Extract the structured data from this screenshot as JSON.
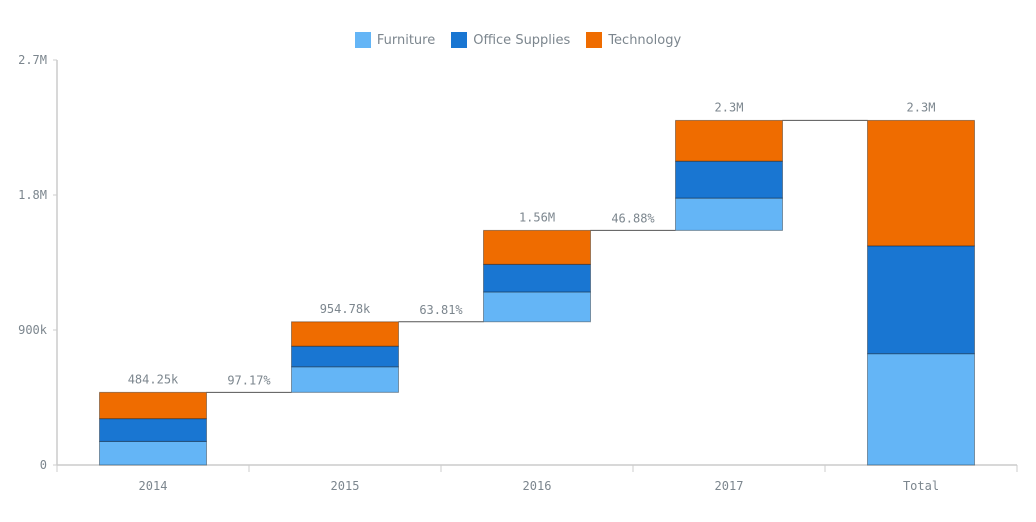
{
  "chart_data": {
    "type": "bar",
    "subtype": "stacked-waterfall",
    "categories": [
      "2014",
      "2015",
      "2016",
      "2017",
      "Total"
    ],
    "series": [
      {
        "name": "Furniture",
        "color": "#64b5f6",
        "values": [
          157190,
          170518,
          198901,
          215387,
          741996
        ]
      },
      {
        "name": "Office Supplies",
        "color": "#1976d2",
        "values": [
          151776,
          137233,
          183940,
          246097,
          719046
        ]
      },
      {
        "name": "Technology",
        "color": "#ef6c00",
        "values": [
          175278,
          162780,
          226364,
          271731,
          836153
        ]
      }
    ],
    "total_labels": [
      "484.25k",
      "954.78k",
      "1.56M",
      "2.3M",
      "2.3M"
    ],
    "connector_labels": [
      "97.17%",
      "63.81%",
      "46.88%",
      ""
    ],
    "yticks": [
      {
        "value": 0,
        "label": "0"
      },
      {
        "value": 900000,
        "label": "900k"
      },
      {
        "value": 1800000,
        "label": "1.8M"
      },
      {
        "value": 2700000,
        "label": "2.7M"
      }
    ],
    "ylim": [
      0,
      2700000
    ],
    "legend_position": "top",
    "grid": false
  }
}
